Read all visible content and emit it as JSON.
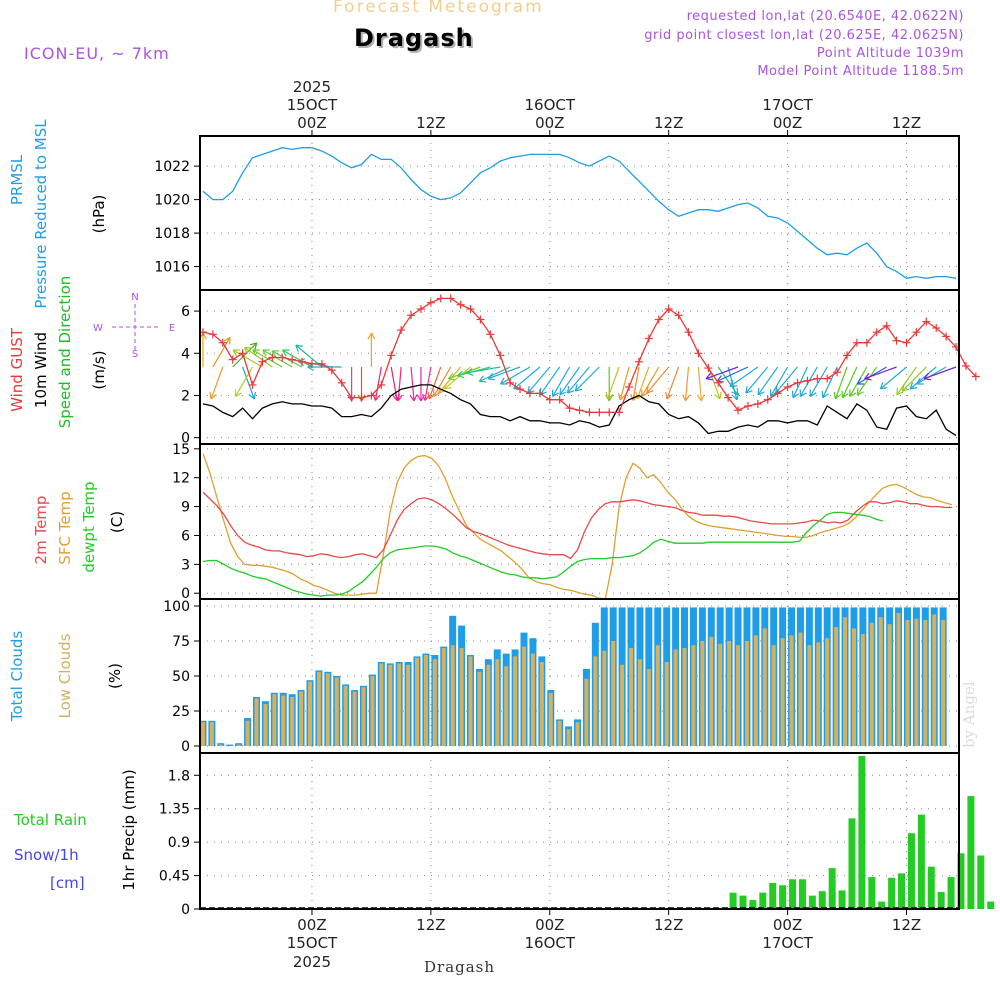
{
  "header": {
    "title": "Forecast Meteogram",
    "location": "Dragash",
    "model": "ICON-EU, ~ 7km",
    "requested": "requested lon,lat (20.6540E, 42.0622N)",
    "grid": "grid point closest lon,lat (20.625E, 42.0625N)",
    "alt": "Point Altitude 1039m",
    "model_alt": "Model Point Altitude 1188.5m",
    "footer": "Dragash",
    "credit": "by Angel"
  },
  "colors": {
    "pressure": "#1e9ee8",
    "gust": "#e83a3a",
    "wind": "#000000",
    "dir": "#22bb22",
    "t2m": "#e84a4a",
    "tsfc": "#e0a030",
    "dew": "#22cc22",
    "cloud_total": "#1e9ee8",
    "cloud_low": "#d4b060",
    "rain": "#22cc22",
    "snow": "#4444ee",
    "purple": "#aa55dd"
  },
  "chart_data": [
    {
      "type": "line",
      "title": "PRMSL Pressure Reduced to MSL",
      "ylabel_a": "PRMSL",
      "ylabel_b": "Pressure Reduced to MSL",
      "unit": "(hPa)",
      "ylim": [
        1014.6,
        1023.8
      ],
      "yticks": [
        1016,
        1018,
        1020,
        1022
      ],
      "values": [
        1020.5,
        1020.0,
        1020.0,
        1020.5,
        1021.6,
        1022.5,
        1022.7,
        1022.9,
        1023.1,
        1023.0,
        1023.1,
        1023.1,
        1022.9,
        1022.6,
        1022.2,
        1021.9,
        1022.1,
        1022.7,
        1022.4,
        1022.4,
        1021.9,
        1021.2,
        1020.6,
        1020.2,
        1020.0,
        1020.1,
        1020.4,
        1021.0,
        1021.6,
        1021.9,
        1022.3,
        1022.5,
        1022.6,
        1022.7,
        1022.7,
        1022.7,
        1022.7,
        1022.5,
        1022.2,
        1022.0,
        1022.3,
        1022.6,
        1022.3,
        1021.7,
        1021.1,
        1020.5,
        1019.9,
        1019.4,
        1019.0,
        1019.2,
        1019.4,
        1019.4,
        1019.3,
        1019.5,
        1019.7,
        1019.8,
        1019.5,
        1019.0,
        1018.9,
        1018.6,
        1018.1,
        1017.6,
        1017.1,
        1016.7,
        1016.8,
        1016.7,
        1017.1,
        1017.4,
        1016.8,
        1016.0,
        1015.7,
        1015.3,
        1015.4,
        1015.3,
        1015.4,
        1015.4,
        1015.3
      ]
    },
    {
      "type": "line",
      "title": "Wind GUST, 10m Wind Speed and Direction",
      "ylabel_a": "Wind GUST",
      "ylabel_b": "10m Wind",
      "ylabel_c": "Speed and Direction",
      "unit": "(m/s)",
      "ylim": [
        -0.3,
        7.0
      ],
      "yticks": [
        0,
        2,
        4,
        6
      ],
      "compass": [
        "N",
        "S",
        "W",
        "E"
      ],
      "gust": [
        5.0,
        4.9,
        4.5,
        3.7,
        4.0,
        2.5,
        3.6,
        3.8,
        3.8,
        3.7,
        3.6,
        3.5,
        3.5,
        3.2,
        2.6,
        1.9,
        1.9,
        2.0,
        2.5,
        3.9,
        5.1,
        5.8,
        6.1,
        6.4,
        6.6,
        6.6,
        6.3,
        6.1,
        5.6,
        4.9,
        3.9,
        2.6,
        2.3,
        2.1,
        2.1,
        1.8,
        1.8,
        1.4,
        1.3,
        1.2,
        1.2,
        1.2,
        1.2,
        2.4,
        3.6,
        4.7,
        5.6,
        6.1,
        5.8,
        5.0,
        4.0,
        3.3,
        2.6,
        1.9,
        1.3,
        1.5,
        1.6,
        1.8,
        2.1,
        2.4,
        2.6,
        2.7,
        2.8,
        2.8,
        3.1,
        3.9,
        4.5,
        4.5,
        5.0,
        5.3,
        4.6,
        4.5,
        5.0,
        5.5,
        5.2,
        4.8,
        4.3,
        3.4,
        2.9
      ],
      "wind": [
        1.6,
        1.5,
        1.2,
        1.0,
        1.4,
        0.9,
        1.4,
        1.6,
        1.7,
        1.6,
        1.6,
        1.5,
        1.5,
        1.4,
        1.0,
        1.0,
        1.1,
        1.0,
        1.4,
        2.0,
        2.3,
        2.4,
        2.5,
        2.5,
        2.3,
        2.1,
        1.8,
        1.6,
        1.1,
        1.0,
        1.0,
        0.8,
        1.0,
        0.8,
        0.8,
        0.7,
        0.7,
        0.6,
        0.8,
        0.7,
        0.5,
        0.6,
        1.5,
        1.8,
        2.0,
        1.7,
        1.6,
        1.1,
        0.9,
        1.0,
        0.7,
        0.2,
        0.3,
        0.3,
        0.5,
        0.6,
        0.5,
        0.8,
        0.8,
        0.7,
        0.8,
        0.8,
        0.6,
        1.5,
        1.2,
        0.9,
        1.6,
        1.3,
        0.5,
        0.4,
        1.4,
        1.5,
        1.0,
        0.9,
        1.3,
        0.4,
        0.1
      ],
      "arrows": [
        {
          "dir": 0,
          "c": "#eeaa00"
        },
        {
          "dir": 30,
          "c": "#dd9911"
        },
        {
          "dir": 200,
          "c": "#ee9933"
        },
        {
          "dir": 45,
          "c": "#44aa22"
        },
        {
          "dir": 160,
          "c": "#11aadd"
        },
        {
          "dir": 210,
          "c": "#bbcc22"
        },
        {
          "dir": 300,
          "c": "#aacc22"
        },
        {
          "dir": 305,
          "c": "#99cc22"
        },
        {
          "dir": 300,
          "c": "#66cc22"
        },
        {
          "dir": 300,
          "c": "#66cc33"
        },
        {
          "dir": 298,
          "c": "#55cc44"
        },
        {
          "dir": 300,
          "c": "#33cc55"
        },
        {
          "dir": 310,
          "c": "#22bb99"
        },
        {
          "dir": 280,
          "c": "#22aacc"
        },
        {
          "dir": 270,
          "c": "#22aacc"
        },
        {
          "dir": 180,
          "c": "#dd4488"
        },
        {
          "dir": 180,
          "c": "#ee5511"
        },
        {
          "dir": 0,
          "c": "#eeaa00"
        },
        {
          "dir": 190,
          "c": "#ee2277"
        },
        {
          "dir": 170,
          "c": "#dd2288"
        },
        {
          "dir": 185,
          "c": "#ee2288"
        },
        {
          "dir": 175,
          "c": "#ee2299"
        },
        {
          "dir": 180,
          "c": "#ee22aa"
        },
        {
          "dir": 190,
          "c": "#ee3388"
        },
        {
          "dir": 200,
          "c": "#ee6633"
        },
        {
          "dir": 210,
          "c": "#ee8833"
        },
        {
          "dir": 220,
          "c": "#ddaa22"
        },
        {
          "dir": 230,
          "c": "#cccc22"
        },
        {
          "dir": 250,
          "c": "#77cc22"
        },
        {
          "dir": 255,
          "c": "#33cc66"
        },
        {
          "dir": 260,
          "c": "#22bb99"
        },
        {
          "dir": 245,
          "c": "#22bbaa"
        },
        {
          "dir": 250,
          "c": "#22aacc"
        },
        {
          "dir": 240,
          "c": "#22aacc"
        },
        {
          "dir": 230,
          "c": "#22aadd"
        },
        {
          "dir": 220,
          "c": "#22aadd"
        },
        {
          "dir": 215,
          "c": "#22aadd"
        },
        {
          "dir": 210,
          "c": "#22aadd"
        },
        {
          "dir": 215,
          "c": "#22aadd"
        },
        {
          "dir": 220,
          "c": "#22aadd"
        },
        {
          "dir": 225,
          "c": "#22aadd"
        },
        {
          "dir": 180,
          "c": "#55cc22"
        },
        {
          "dir": 200,
          "c": "#ccbb22"
        },
        {
          "dir": 195,
          "c": "#ee9922"
        },
        {
          "dir": 190,
          "c": "#ee8833"
        },
        {
          "dir": 200,
          "c": "#eeaa22"
        },
        {
          "dir": 210,
          "c": "#ee9922"
        },
        {
          "dir": 220,
          "c": "#ee8833"
        },
        {
          "dir": 200,
          "c": "#ee8833"
        },
        {
          "dir": 185,
          "c": "#ee9933"
        },
        {
          "dir": 175,
          "c": "#eeaa33"
        },
        {
          "dir": 160,
          "c": "#aacc22"
        },
        {
          "dir": 145,
          "c": "#22bb99"
        },
        {
          "dir": 165,
          "c": "#22aacc"
        },
        {
          "dir": 250,
          "c": "#7722cc"
        },
        {
          "dir": 245,
          "c": "#2266dd"
        },
        {
          "dir": 235,
          "c": "#22aadd"
        },
        {
          "dir": 220,
          "c": "#22aadd"
        },
        {
          "dir": 215,
          "c": "#22aadd"
        },
        {
          "dir": 210,
          "c": "#22aadd"
        },
        {
          "dir": 220,
          "c": "#22aacc"
        },
        {
          "dir": 205,
          "c": "#22aadd"
        },
        {
          "dir": 210,
          "c": "#22aadd"
        },
        {
          "dir": 210,
          "c": "#22aacc"
        },
        {
          "dir": 205,
          "c": "#22aacc"
        },
        {
          "dir": 200,
          "c": "#55cc22"
        },
        {
          "dir": 205,
          "c": "#55cc22"
        },
        {
          "dir": 210,
          "c": "#55cc22"
        },
        {
          "dir": 215,
          "c": "#66cc22"
        },
        {
          "dir": 240,
          "c": "#2266dd"
        },
        {
          "dir": 250,
          "c": "#7722cc"
        },
        {
          "dir": 230,
          "c": "#22aacc"
        },
        {
          "dir": 215,
          "c": "#99cc22"
        },
        {
          "dir": 225,
          "c": "#88cc22"
        },
        {
          "dir": 230,
          "c": "#22aacc"
        },
        {
          "dir": 240,
          "c": "#22aadd"
        },
        {
          "dir": 250,
          "c": "#7722cc"
        }
      ]
    },
    {
      "type": "line",
      "title": "2m Temp, SFC Temp, dewpt Temp",
      "ylabel_a": "2m Temp",
      "ylabel_b": "SFC Temp",
      "ylabel_c": "dewpt Temp",
      "unit": "(C)",
      "ylim": [
        -0.6,
        15.5
      ],
      "yticks": [
        0,
        3,
        6,
        9,
        12,
        15
      ],
      "t2m": [
        10.5,
        9.8,
        9.1,
        8.2,
        7.0,
        6.0,
        5.3,
        5.0,
        4.8,
        4.5,
        4.4,
        4.4,
        4.2,
        4.1,
        4.0,
        3.8,
        3.9,
        4.1,
        4.0,
        3.8,
        3.7,
        3.8,
        4.0,
        4.1,
        3.9,
        3.7,
        4.5,
        6.0,
        7.6,
        8.7,
        9.3,
        9.8,
        9.9,
        9.7,
        9.3,
        8.8,
        8.2,
        7.5,
        6.8,
        6.4,
        6.2,
        5.9,
        5.6,
        5.3,
        5.0,
        4.8,
        4.6,
        4.4,
        4.2,
        4.1,
        4.0,
        4.0,
        4.0,
        3.6,
        4.5,
        6.4,
        7.8,
        8.7,
        9.3,
        9.5,
        9.5,
        9.6,
        9.7,
        9.6,
        9.4,
        9.2,
        9.1,
        9.0,
        8.9,
        8.6,
        8.4,
        8.3,
        8.1,
        8.1,
        8.1,
        8.0,
        8.0,
        7.9,
        7.7,
        7.5,
        7.4,
        7.3,
        7.2,
        7.2,
        7.2,
        7.2,
        7.3,
        7.4,
        7.6,
        7.5,
        7.3,
        7.4,
        7.3,
        7.6,
        8.4,
        9.0,
        9.5,
        9.5,
        9.3,
        9.4,
        9.6,
        9.5,
        9.3,
        9.3,
        9.1,
        9.0,
        9.0,
        8.9,
        8.9
      ],
      "tsfc": [
        14.5,
        12.5,
        10.0,
        7.5,
        5.2,
        3.8,
        3.0,
        2.9,
        2.9,
        2.8,
        2.7,
        2.5,
        2.3,
        2.0,
        1.5,
        1.2,
        0.8,
        0.6,
        0.3,
        0.0,
        -0.2,
        -0.2,
        -0.2,
        -0.1,
        0.0,
        0.0,
        4.0,
        8.5,
        11.5,
        13.0,
        13.8,
        14.2,
        14.3,
        14.0,
        13.2,
        11.8,
        10.0,
        8.5,
        7.0,
        6.3,
        5.6,
        5.2,
        4.8,
        4.4,
        3.8,
        3.2,
        2.5,
        1.6,
        1.2,
        1.0,
        0.9,
        0.6,
        0.4,
        0.3,
        0.1,
        -0.1,
        -0.2,
        -0.5,
        -0.6,
        3.0,
        9.0,
        12.0,
        13.5,
        13.0,
        12.0,
        12.3,
        11.5,
        10.5,
        9.8,
        8.8,
        8.0,
        7.5,
        7.2,
        7.0,
        6.9,
        6.8,
        6.7,
        6.6,
        6.5,
        6.4,
        6.3,
        6.2,
        6.1,
        6.0,
        5.9,
        5.9,
        5.8,
        5.8,
        6.0,
        6.3,
        6.5,
        6.7,
        6.9,
        7.2,
        7.8,
        8.6,
        9.4,
        10.2,
        10.9,
        11.2,
        11.3,
        11.0,
        10.6,
        10.2,
        10.0,
        9.9,
        9.6,
        9.4,
        9.2
      ],
      "dew": [
        3.3,
        3.4,
        3.4,
        3.0,
        2.6,
        2.3,
        2.1,
        1.8,
        1.6,
        1.5,
        1.2,
        0.9,
        0.6,
        0.3,
        0.1,
        -0.1,
        -0.2,
        -0.3,
        -0.2,
        -0.2,
        -0.1,
        0.2,
        0.7,
        1.2,
        1.9,
        2.7,
        3.6,
        4.2,
        4.5,
        4.6,
        4.7,
        4.8,
        4.9,
        4.9,
        4.8,
        4.6,
        4.2,
        3.9,
        3.7,
        3.4,
        3.1,
        2.8,
        2.5,
        2.2,
        2.0,
        1.9,
        1.7,
        1.6,
        1.6,
        1.5,
        1.6,
        1.7,
        2.2,
        2.8,
        3.3,
        3.5,
        3.6,
        3.6,
        3.6,
        3.7,
        3.7,
        3.8,
        3.9,
        4.2,
        4.7,
        5.3,
        5.6,
        5.4,
        5.2,
        5.2,
        5.2,
        5.2,
        5.2,
        5.3,
        5.3,
        5.3,
        5.3,
        5.3,
        5.3,
        5.3,
        5.3,
        5.3,
        5.3,
        5.3,
        5.3,
        5.3,
        5.4,
        6.3,
        7.0,
        7.6,
        8.2,
        8.4,
        8.4,
        8.3,
        8.2,
        8.1,
        8.0,
        7.7,
        7.5
      ]
    },
    {
      "type": "bar",
      "title": "Total Clouds, Low Clouds",
      "ylabel_a": "Total Clouds",
      "ylabel_b": "Low Clouds",
      "unit": "(%)",
      "ylim": [
        -5,
        105
      ],
      "yticks": [
        0,
        25,
        50,
        75,
        100
      ],
      "total": [
        18,
        18,
        2,
        1,
        2,
        20,
        35,
        32,
        38,
        38,
        37,
        40,
        47,
        54,
        53,
        50,
        44,
        40,
        43,
        51,
        60,
        59,
        60,
        60,
        64,
        66,
        65,
        71,
        93,
        86,
        65,
        55,
        62,
        69,
        66,
        69,
        81,
        77,
        64,
        40,
        19,
        14,
        19,
        55,
        88,
        99,
        99,
        99,
        99,
        99,
        99,
        99,
        99,
        99,
        99,
        99,
        99,
        99,
        99,
        99,
        99,
        99,
        99,
        99,
        99,
        99,
        99,
        99,
        99,
        99,
        99,
        99,
        99,
        99,
        99,
        99,
        99,
        99,
        99,
        99,
        99,
        99,
        99,
        99
      ],
      "low": [
        17,
        17,
        1,
        0,
        1,
        18,
        34,
        30,
        37,
        36,
        35,
        39,
        46,
        53,
        52,
        49,
        43,
        39,
        42,
        50,
        59,
        58,
        59,
        58,
        63,
        65,
        62,
        70,
        72,
        70,
        64,
        53,
        58,
        62,
        57,
        64,
        71,
        66,
        60,
        38,
        18,
        12,
        17,
        48,
        64,
        68,
        75,
        58,
        70,
        62,
        55,
        72,
        60,
        69,
        70,
        72,
        75,
        78,
        73,
        75,
        72,
        75,
        79,
        84,
        72,
        77,
        79,
        81,
        72,
        74,
        77,
        85,
        92,
        84,
        80,
        88,
        92,
        87,
        95,
        90,
        91,
        90,
        94,
        90
      ]
    },
    {
      "type": "bar",
      "title": "1hr Precip (mm)",
      "ylabel_a": "Total  Rain",
      "ylabel_b": "Snow/1h",
      "ylabel_c": "[cm]",
      "unit": "1hr Precip (mm)",
      "ylim": [
        0,
        2.1
      ],
      "yticks": [
        0,
        0.45,
        0.9,
        1.35,
        1.8
      ],
      "offset": 66,
      "rain": [
        0.22,
        0.18,
        0.12,
        0.22,
        0.35,
        0.32,
        0.4,
        0.4,
        0.18,
        0.24,
        0.55,
        0.25,
        1.22,
        2.06,
        0.43,
        0.1,
        0.42,
        0.48,
        1.02,
        1.27,
        0.57,
        0.23,
        0.43,
        0.75,
        1.52,
        0.72,
        0.1
      ]
    }
  ],
  "xaxis": {
    "top": [
      {
        "l": "2025",
        "t": 0,
        "row": 0
      },
      {
        "l": "15OCT",
        "t": 0,
        "row": 1
      },
      {
        "l": "00Z",
        "t": 0,
        "row": 2
      },
      {
        "l": "12Z",
        "t": 12,
        "row": 2
      },
      {
        "l": "16OCT",
        "t": 24,
        "row": 1
      },
      {
        "l": "00Z",
        "t": 24,
        "row": 2
      },
      {
        "l": "12Z",
        "t": 36,
        "row": 2
      },
      {
        "l": "17OCT",
        "t": 48,
        "row": 1
      },
      {
        "l": "00Z",
        "t": 48,
        "row": 2
      },
      {
        "l": "12Z",
        "t": 60,
        "row": 2
      }
    ],
    "bottom": [
      {
        "l": "00Z",
        "t": 0,
        "row": 0
      },
      {
        "l": "15OCT",
        "t": 0,
        "row": 1
      },
      {
        "l": "2025",
        "t": 0,
        "row": 2
      },
      {
        "l": "12Z",
        "t": 12,
        "row": 0
      },
      {
        "l": "00Z",
        "t": 24,
        "row": 0
      },
      {
        "l": "16OCT",
        "t": 24,
        "row": 1
      },
      {
        "l": "12Z",
        "t": 36,
        "row": 0
      },
      {
        "l": "00Z",
        "t": 48,
        "row": 0
      },
      {
        "l": "17OCT",
        "t": 48,
        "row": 1
      },
      {
        "l": "12Z",
        "t": 60,
        "row": 0
      }
    ],
    "range_hours": [
      -11.3,
      65.3
    ]
  }
}
